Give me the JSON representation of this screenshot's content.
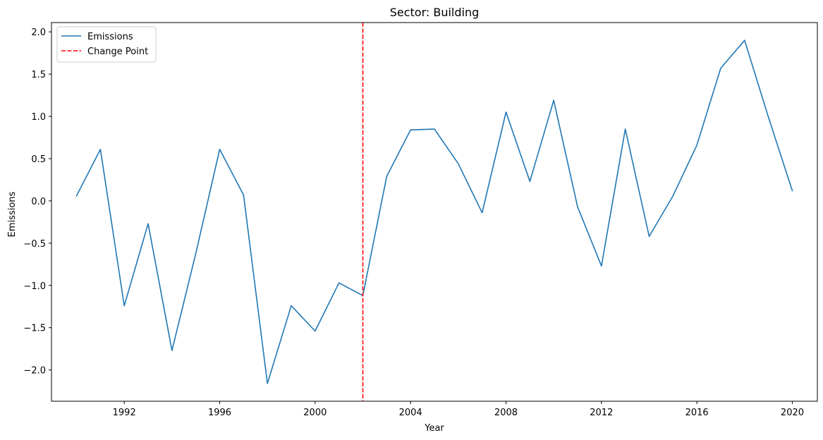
{
  "chart_data": {
    "type": "line",
    "title": "Sector: Building",
    "xlabel": "Year",
    "ylabel": "Emissions",
    "xlim": [
      1988.95,
      2021.05
    ],
    "ylim": [
      -2.37,
      2.11
    ],
    "x_ticks": [
      1992,
      1996,
      2000,
      2004,
      2008,
      2012,
      2016,
      2020
    ],
    "y_ticks": [
      -2.0,
      -1.5,
      -1.0,
      -0.5,
      0.0,
      0.5,
      1.0,
      1.5,
      2.0
    ],
    "y_tick_labels": [
      "−2.0",
      "−1.5",
      "−1.0",
      "−0.5",
      "0.0",
      "0.5",
      "1.0",
      "1.5",
      "2.0"
    ],
    "grid": false,
    "legend_position": "top-left",
    "series": [
      {
        "name": "Emissions",
        "color": "#1f77b4",
        "style": "solid",
        "x": [
          1990,
          1991,
          1992,
          1993,
          1994,
          1995,
          1996,
          1997,
          1998,
          1999,
          2000,
          2001,
          2002,
          2003,
          2004,
          2005,
          2006,
          2007,
          2008,
          2009,
          2010,
          2011,
          2012,
          2013,
          2014,
          2015,
          2016,
          2017,
          2018,
          2019,
          2020
        ],
        "values": [
          0.06,
          0.61,
          -1.24,
          -0.27,
          -1.77,
          -0.62,
          0.61,
          0.07,
          -2.16,
          -1.24,
          -1.54,
          -0.97,
          -1.12,
          0.29,
          0.84,
          0.85,
          0.44,
          -0.14,
          1.05,
          0.23,
          1.19,
          -0.07,
          -0.77,
          0.85,
          -0.42,
          0.06,
          0.66,
          1.57,
          1.9,
          0.99,
          0.12
        ]
      }
    ],
    "vlines": [
      {
        "name": "Change Point",
        "x": 2002,
        "color": "#ff0000",
        "style": "dashed"
      }
    ]
  }
}
